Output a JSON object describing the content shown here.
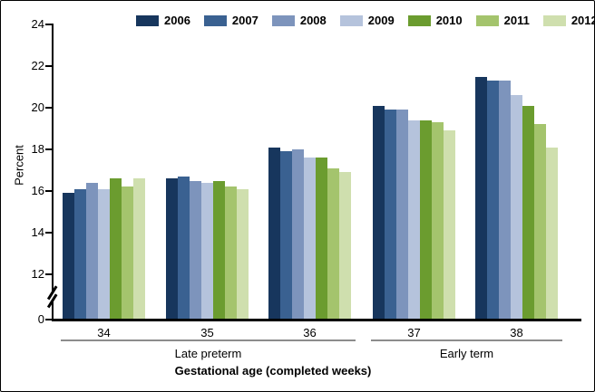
{
  "chart_data": {
    "type": "bar",
    "title": "",
    "ylabel": "Percent",
    "xlabel": "Gestational age (completed weeks)",
    "legend_position": "top",
    "grid": false,
    "categories": [
      "34",
      "35",
      "36",
      "37",
      "38"
    ],
    "category_group_brackets": [
      {
        "label": "Late preterm",
        "categories": [
          "34",
          "35",
          "36"
        ]
      },
      {
        "label": "Early term",
        "categories": [
          "37",
          "38"
        ]
      }
    ],
    "y_axis": {
      "ticks": [
        0,
        12,
        14,
        16,
        18,
        20,
        22,
        24
      ],
      "axis_break_between": [
        0,
        12
      ],
      "displayed_range_above_break": [
        12,
        24
      ]
    },
    "series": [
      {
        "name": "2006",
        "color": "#17365d",
        "values": [
          15.9,
          16.6,
          18.1,
          20.1,
          21.5
        ]
      },
      {
        "name": "2007",
        "color": "#3a6191",
        "values": [
          16.1,
          16.7,
          17.9,
          19.9,
          21.3
        ]
      },
      {
        "name": "2008",
        "color": "#7d94bc",
        "values": [
          16.4,
          16.5,
          18.0,
          19.9,
          21.3
        ]
      },
      {
        "name": "2009",
        "color": "#b5c3dc",
        "values": [
          16.1,
          16.4,
          17.6,
          19.4,
          20.6
        ]
      },
      {
        "name": "2010",
        "color": "#6b9c2f",
        "values": [
          16.6,
          16.5,
          17.6,
          19.4,
          20.1
        ]
      },
      {
        "name": "2011",
        "color": "#a4c46d",
        "values": [
          16.2,
          16.2,
          17.1,
          19.3,
          19.2
        ]
      },
      {
        "name": "2012",
        "color": "#cfdfae",
        "values": [
          16.6,
          16.1,
          16.9,
          18.9,
          18.1
        ]
      }
    ],
    "colors": {
      "axis": "#000000",
      "bracket_line": "#8c8c8c",
      "text": "#000000"
    }
  }
}
